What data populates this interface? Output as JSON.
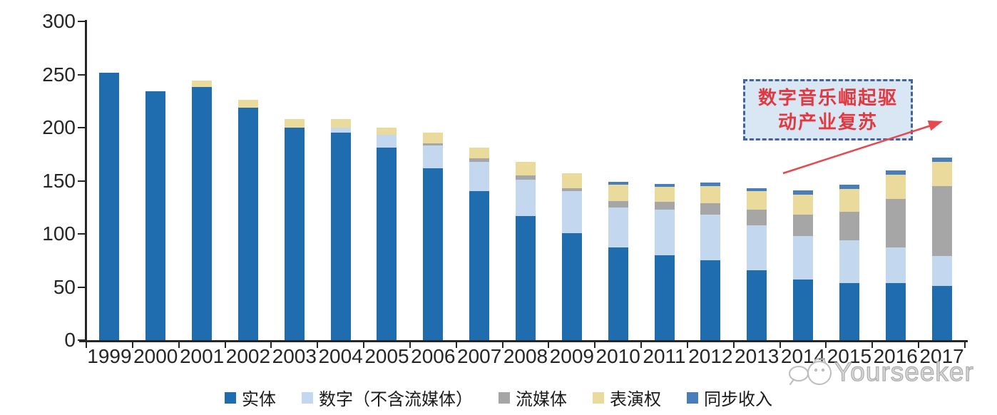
{
  "chart_data": {
    "type": "bar",
    "stacked": true,
    "categories": [
      "1999",
      "2000",
      "2001",
      "2002",
      "2003",
      "2004",
      "2005",
      "2006",
      "2007",
      "2008",
      "2009",
      "2010",
      "2011",
      "2012",
      "2013",
      "2014",
      "2015",
      "2016",
      "2017"
    ],
    "series": [
      {
        "name": "实体",
        "color": "#1F6DAE",
        "values": [
          252,
          234,
          238,
          219,
          200,
          195,
          181,
          162,
          140,
          117,
          101,
          87,
          80,
          75,
          66,
          57,
          54,
          54,
          51
        ]
      },
      {
        "name": "数字（不含流媒体）",
        "color": "#C3D7EE",
        "values": [
          0,
          0,
          0,
          0,
          0,
          5,
          12,
          21,
          28,
          34,
          39,
          38,
          43,
          43,
          42,
          41,
          40,
          33,
          28
        ]
      },
      {
        "name": "流媒体",
        "color": "#A6A6A6",
        "values": [
          0,
          0,
          0,
          0,
          0,
          0,
          0,
          2,
          3,
          4,
          3,
          6,
          7,
          11,
          15,
          20,
          27,
          46,
          66
        ]
      },
      {
        "name": "表演权",
        "color": "#EADA9B",
        "values": [
          0,
          0,
          6,
          7,
          8,
          8,
          7,
          10,
          10,
          13,
          14,
          15,
          14,
          16,
          17,
          19,
          21,
          23,
          23
        ]
      },
      {
        "name": "同步收入",
        "color": "#4A7EBB",
        "values": [
          0,
          0,
          0,
          0,
          0,
          0,
          0,
          0,
          0,
          0,
          0,
          3,
          3,
          3,
          3,
          4,
          4,
          4,
          4
        ]
      }
    ],
    "ylim": [
      0,
      300
    ],
    "y_tick_labels": [
      "0",
      "50",
      "100",
      "150",
      "200",
      "250",
      "300"
    ],
    "grid": false,
    "legend_position": "bottom"
  },
  "annotation": {
    "line1": "数字音乐崛起驱",
    "line2": "动产业复苏"
  },
  "watermark": {
    "text": "Yourseeker"
  }
}
